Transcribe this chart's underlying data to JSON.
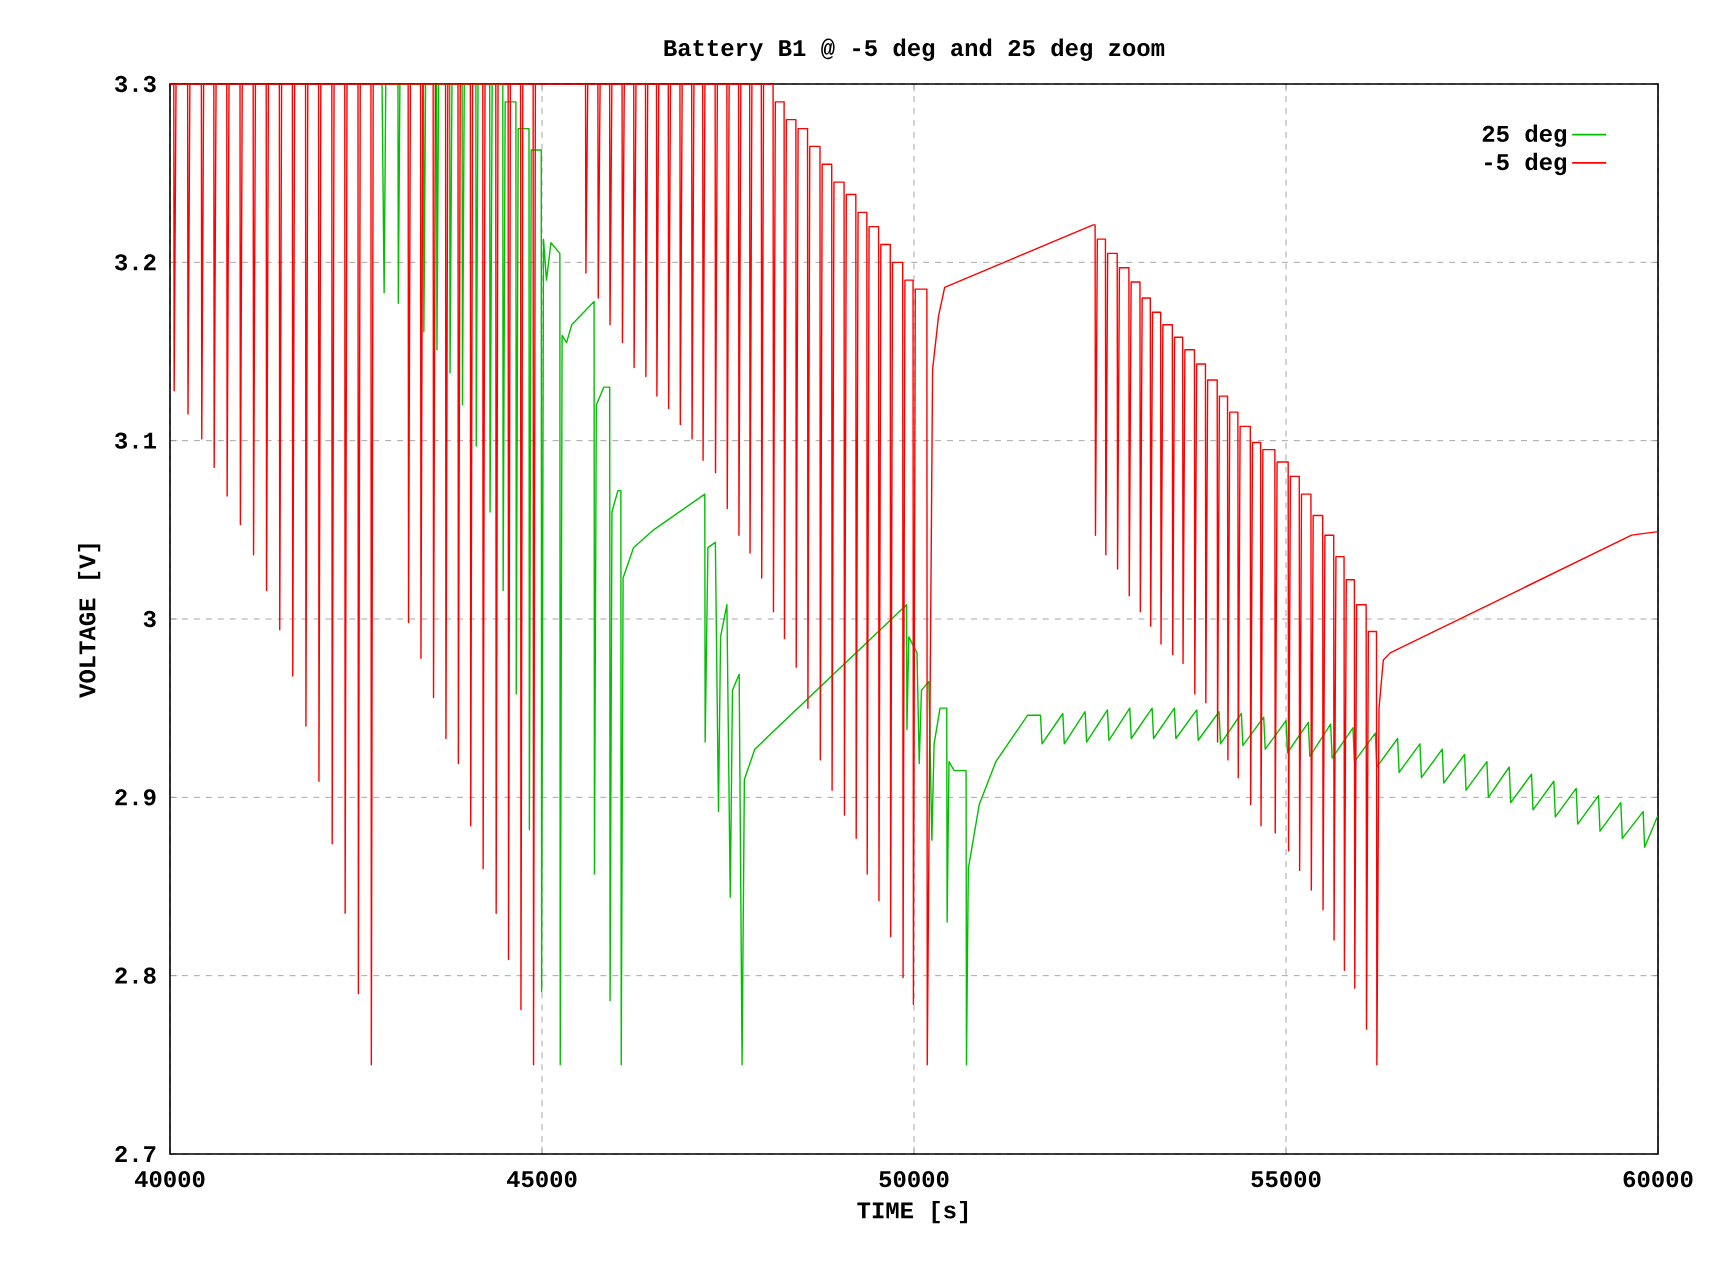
{
  "chart_data": {
    "type": "line",
    "title": "Battery B1 @ -5 deg and 25 deg zoom",
    "xlabel": "TIME [s]",
    "ylabel": "VOLTAGE [V]",
    "xlim": [
      40000,
      60000
    ],
    "ylim": [
      2.7,
      3.3
    ],
    "xticks": [
      40000,
      45000,
      50000,
      55000,
      60000
    ],
    "yticks": [
      2.7,
      2.8,
      2.9,
      3,
      3.1,
      3.2,
      3.3
    ],
    "grid": true,
    "legend": "top right",
    "series": [
      {
        "name": "25 deg",
        "color": "#00c000",
        "x": [
          42850,
          42878,
          42900,
          43064,
          43069,
          43090,
          43407,
          43412,
          43435,
          43583,
          43588,
          43610,
          43759,
          43764,
          43790,
          43926,
          43931,
          43955,
          44111,
          44116,
          44140,
          44297,
          44302,
          44330,
          44473,
          44478,
          44505,
          44649,
          44654,
          44680,
          44825,
          44830,
          44855,
          44990,
          44995,
          45020,
          45060,
          45120,
          45240,
          45245,
          45270,
          45330,
          45400,
          45700,
          45705,
          45730,
          45830,
          45910,
          45915,
          45940,
          46020,
          46060,
          46065,
          46090,
          46230,
          46500,
          47188,
          47193,
          47230,
          47330,
          47372,
          47400,
          47485,
          47530,
          47560,
          47650,
          47689,
          47720,
          47860,
          49900,
          49905,
          49930,
          50040,
          50070,
          50100,
          50200,
          50240,
          50270,
          50350,
          50440,
          50445,
          50470,
          50540,
          50700,
          50705,
          50730,
          50877,
          51100,
          51526,
          51700,
          51720,
          52000,
          52020,
          52300,
          52320,
          52600,
          52620,
          52900,
          52920,
          53200,
          53220,
          53500,
          53520,
          53800,
          53820,
          54100,
          54120,
          54400,
          54420,
          54700,
          54720,
          55000,
          55020,
          55300,
          55320,
          55600,
          55620,
          55900,
          55920,
          56200,
          56220,
          56500,
          56520,
          56800,
          56820,
          57100,
          57120,
          57400,
          57420,
          57700,
          57720,
          58000,
          58020,
          58300,
          58320,
          58600,
          58620,
          58900,
          58920,
          59200,
          59220,
          59500,
          59520,
          59800,
          59820,
          60000
        ],
        "values": [
          3.3,
          3.183,
          3.3,
          3.3,
          3.177,
          3.3,
          3.3,
          3.161,
          3.3,
          3.3,
          3.151,
          3.3,
          3.3,
          3.138,
          3.3,
          3.3,
          3.12,
          3.3,
          3.3,
          3.097,
          3.3,
          3.3,
          3.06,
          3.3,
          3.3,
          3.016,
          3.29,
          3.29,
          2.958,
          3.275,
          3.275,
          2.882,
          3.263,
          3.263,
          2.791,
          3.213,
          3.19,
          3.211,
          3.205,
          2.75,
          3.159,
          3.155,
          3.165,
          3.178,
          2.857,
          3.12,
          3.13,
          3.13,
          2.786,
          3.06,
          3.072,
          3.072,
          2.75,
          3.023,
          3.04,
          3.05,
          3.07,
          2.931,
          3.04,
          3.043,
          2.892,
          2.99,
          3.008,
          2.844,
          2.96,
          2.969,
          2.75,
          2.91,
          2.927,
          3.008,
          2.938,
          2.99,
          2.981,
          2.919,
          2.96,
          2.965,
          2.876,
          2.93,
          2.95,
          2.95,
          2.83,
          2.92,
          2.915,
          2.915,
          2.75,
          2.86,
          2.896,
          2.92,
          2.946,
          2.946,
          2.93,
          2.947,
          2.93,
          2.948,
          2.931,
          2.949,
          2.932,
          2.95,
          2.933,
          2.95,
          2.933,
          2.95,
          2.933,
          2.949,
          2.932,
          2.948,
          2.93,
          2.947,
          2.929,
          2.945,
          2.927,
          2.943,
          2.925,
          2.942,
          2.923,
          2.941,
          2.922,
          2.939,
          2.92,
          2.936,
          2.917,
          2.933,
          2.914,
          2.93,
          2.911,
          2.927,
          2.908,
          2.924,
          2.904,
          2.92,
          2.9,
          2.917,
          2.897,
          2.913,
          2.893,
          2.909,
          2.889,
          2.905,
          2.885,
          2.901,
          2.881,
          2.897,
          2.877,
          2.892,
          2.872,
          2.89
        ]
      },
      {
        "name": "-5 deg",
        "color": "#ff0000",
        "x": [
          40000,
          40051,
          40056,
          40081,
          40237,
          40242,
          40267,
          40422,
          40427,
          40452,
          40589,
          40594,
          40619,
          40763,
          40768,
          40793,
          40941,
          40946,
          40971,
          41118,
          41123,
          41148,
          41293,
          41298,
          41323,
          41470,
          41475,
          41500,
          41645,
          41650,
          41675,
          41822,
          41827,
          41852,
          41997,
          42002,
          42027,
          42175,
          42180,
          42205,
          42349,
          42354,
          42379,
          42527,
          42532,
          42557,
          42701,
          42706,
          42731,
          43201,
          43206,
          43231,
          43368,
          43373,
          43398,
          43537,
          43542,
          43567,
          43704,
          43709,
          43734,
          43871,
          43876,
          43901,
          44037,
          44042,
          44067,
          44204,
          44209,
          44234,
          44379,
          44384,
          44409,
          44545,
          44550,
          44575,
          44712,
          44717,
          44742,
          44881,
          44886,
          44911,
          45585,
          45590,
          45615,
          45751,
          45756,
          45781,
          45909,
          45914,
          45939,
          46076,
          46081,
          46106,
          46233,
          46238,
          46263,
          46391,
          46396,
          46421,
          46539,
          46544,
          46569,
          46697,
          46702,
          46727,
          46854,
          46859,
          46884,
          47012,
          47017,
          47042,
          47160,
          47165,
          47190,
          47327,
          47332,
          47357,
          47485,
          47490,
          47515,
          47642,
          47647,
          47672,
          47791,
          47796,
          47821,
          47948,
          47953,
          47978,
          48106,
          48111,
          48136,
          48254,
          48259,
          48284,
          48412,
          48417,
          48442,
          48569,
          48574,
          48599,
          48736,
          48741,
          48766,
          48894,
          48899,
          48924,
          49060,
          49065,
          49090,
          49218,
          49223,
          49248,
          49366,
          49371,
          49396,
          49524,
          49529,
          49554,
          49681,
          49686,
          49711,
          49848,
          49853,
          49878,
          49987,
          49992,
          50017,
          50173,
          50178,
          50250,
          50330,
          50412,
          52408,
          52434,
          52439,
          52464,
          52573,
          52578,
          52603,
          52731,
          52736,
          52761,
          52888,
          52893,
          52918,
          53037,
          53042,
          53067,
          53176,
          53181,
          53206,
          53315,
          53320,
          53345,
          53472,
          53477,
          53502,
          53611,
          53616,
          53641,
          53769,
          53774,
          53799,
          53917,
          53922,
          53947,
          54075,
          54080,
          54105,
          54214,
          54219,
          54244,
          54353,
          54358,
          54383,
          54520,
          54525,
          54550,
          54659,
          54664,
          54689,
          54850,
          54855,
          54880,
          55029,
          55034,
          55059,
          55178,
          55183,
          55208,
          55335,
          55340,
          55365,
          55493,
          55498,
          55523,
          55641,
          55646,
          55671,
          55780,
          55785,
          55810,
          55919,
          55924,
          55949,
          56077,
          56082,
          56107,
          56216,
          56221,
          56250,
          56308,
          56400,
          59645,
          60000
        ],
        "values": [
          3.3,
          3.3,
          3.128,
          3.3,
          3.3,
          3.115,
          3.3,
          3.3,
          3.101,
          3.3,
          3.3,
          3.085,
          3.3,
          3.3,
          3.069,
          3.3,
          3.3,
          3.053,
          3.3,
          3.3,
          3.036,
          3.3,
          3.3,
          3.016,
          3.3,
          3.3,
          2.994,
          3.3,
          3.3,
          2.968,
          3.3,
          3.3,
          2.94,
          3.3,
          3.3,
          2.909,
          3.3,
          3.3,
          2.874,
          3.3,
          3.3,
          2.835,
          3.3,
          3.3,
          2.79,
          3.3,
          3.3,
          2.75,
          3.3,
          3.3,
          2.998,
          3.3,
          3.3,
          2.978,
          3.3,
          3.3,
          2.956,
          3.3,
          3.3,
          2.933,
          3.3,
          3.3,
          2.919,
          3.3,
          3.3,
          2.884,
          3.3,
          3.3,
          2.86,
          3.3,
          3.3,
          2.835,
          3.3,
          3.3,
          2.809,
          3.3,
          3.3,
          2.781,
          3.3,
          3.3,
          2.75,
          3.3,
          3.3,
          3.194,
          3.3,
          3.3,
          3.18,
          3.3,
          3.3,
          3.165,
          3.3,
          3.3,
          3.155,
          3.3,
          3.3,
          3.141,
          3.3,
          3.3,
          3.136,
          3.3,
          3.3,
          3.125,
          3.3,
          3.3,
          3.118,
          3.3,
          3.3,
          3.109,
          3.3,
          3.3,
          3.101,
          3.3,
          3.3,
          3.089,
          3.3,
          3.3,
          3.082,
          3.3,
          3.3,
          3.062,
          3.3,
          3.3,
          3.047,
          3.3,
          3.3,
          3.037,
          3.3,
          3.3,
          3.023,
          3.3,
          3.3,
          3.004,
          3.29,
          3.29,
          2.989,
          3.28,
          3.28,
          2.973,
          3.275,
          3.275,
          2.95,
          3.265,
          3.265,
          2.921,
          3.255,
          3.255,
          2.904,
          3.245,
          3.245,
          2.89,
          3.238,
          3.238,
          2.877,
          3.228,
          3.228,
          2.857,
          3.22,
          3.22,
          2.842,
          3.21,
          3.21,
          2.822,
          3.2,
          3.2,
          2.799,
          3.19,
          3.19,
          2.784,
          3.185,
          3.185,
          2.75,
          3.14,
          3.17,
          3.186,
          3.221,
          3.221,
          3.047,
          3.213,
          3.213,
          3.036,
          3.205,
          3.205,
          3.028,
          3.197,
          3.197,
          3.013,
          3.189,
          3.189,
          3.004,
          3.18,
          3.18,
          2.996,
          3.172,
          3.172,
          2.986,
          3.165,
          3.165,
          2.98,
          3.158,
          3.158,
          2.975,
          3.151,
          3.151,
          2.958,
          3.143,
          3.143,
          2.953,
          3.134,
          3.134,
          2.931,
          3.125,
          3.125,
          2.921,
          3.116,
          3.116,
          2.911,
          3.108,
          3.108,
          2.896,
          3.099,
          3.099,
          2.884,
          3.095,
          3.095,
          2.88,
          3.088,
          3.088,
          2.87,
          3.08,
          3.08,
          2.859,
          3.07,
          3.07,
          2.848,
          3.058,
          3.058,
          2.837,
          3.047,
          3.047,
          2.82,
          3.035,
          3.035,
          2.803,
          3.022,
          3.022,
          2.793,
          3.008,
          3.008,
          2.77,
          2.993,
          2.993,
          2.75,
          2.95,
          2.977,
          2.981,
          3.047,
          3.049
        ]
      }
    ]
  }
}
